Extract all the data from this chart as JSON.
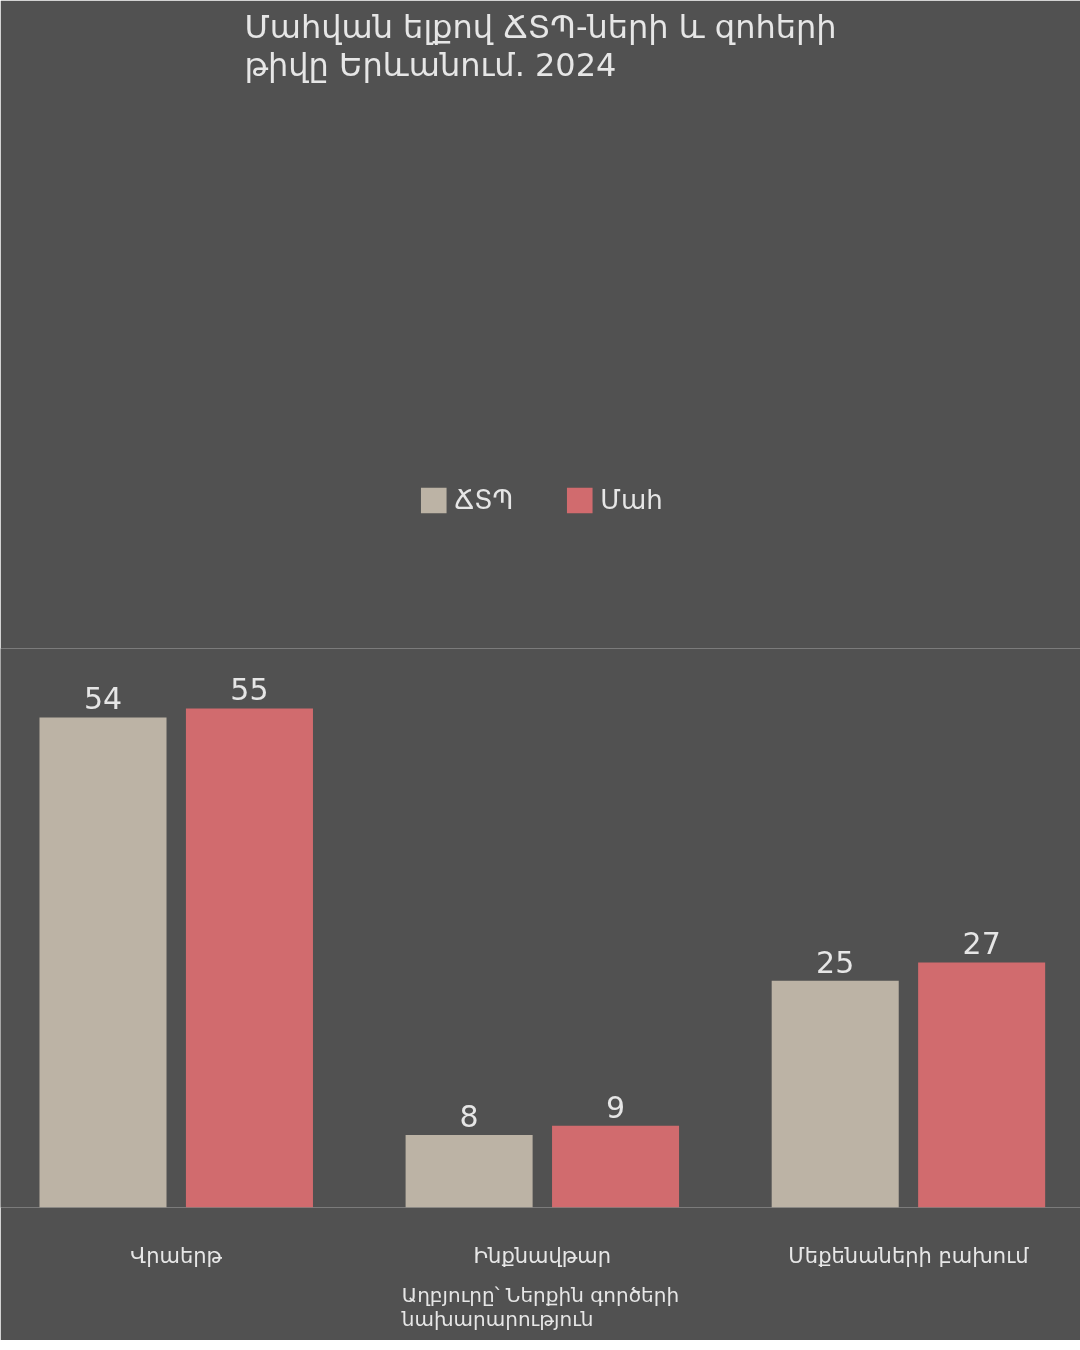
{
  "chart_data": {
    "type": "bar",
    "title": "Մահվան ելքով ՃՏՊ-ների և զոհերի\nթիվը Երևանում. 2024",
    "categories": [
      "Վրաերթ",
      "Ինքնավթար",
      "Մեքենաների բախում"
    ],
    "series": [
      {
        "name": "ՃՏՊ",
        "color": "#bcb3a5",
        "values": [
          54,
          8,
          25
        ]
      },
      {
        "name": "Մահ",
        "color": "#d16b6e",
        "values": [
          55,
          9,
          27
        ]
      }
    ],
    "data_labels": true,
    "grid": false,
    "legend": "top",
    "annotations": [
      "Աղբյուրը՝ Ներքին գործերի\nնախարարություն"
    ]
  }
}
